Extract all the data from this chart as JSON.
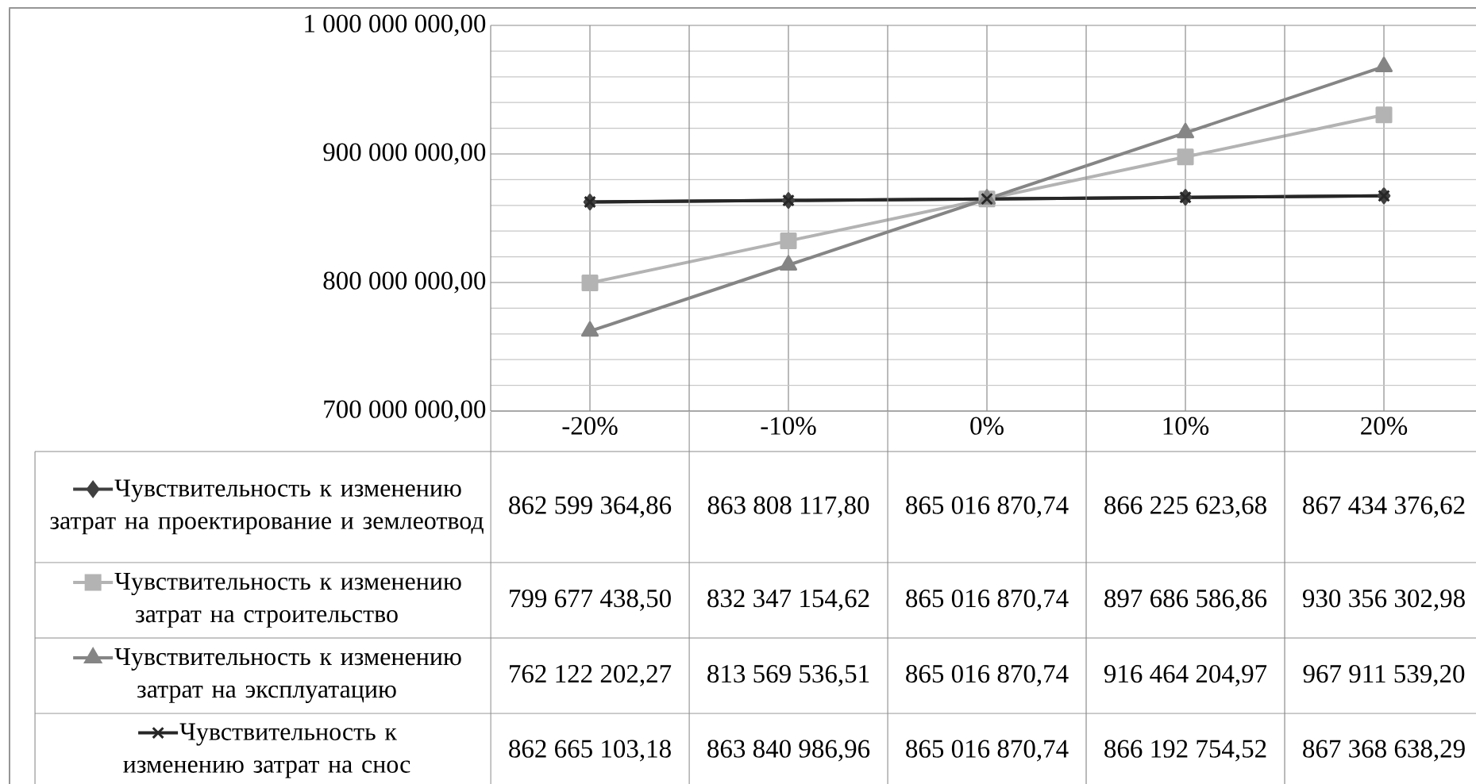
{
  "chart_data": {
    "type": "line",
    "categories": [
      "-20%",
      "-10%",
      "0%",
      "10%",
      "20%"
    ],
    "ylim": [
      700000000,
      1000000000
    ],
    "yticks": [
      {
        "value": 700000000,
        "label": "700 000 000,00"
      },
      {
        "value": 800000000,
        "label": "800 000 000,00"
      },
      {
        "value": 900000000,
        "label": "900 000 000,00"
      },
      {
        "value": 1000000000,
        "label": "1 000 000 000,00"
      }
    ],
    "grid": true,
    "legend": "bottom",
    "series": [
      {
        "name": "Чувствительность к изменению затрат на проектирование и землеотвод",
        "color": "#404040",
        "marker": "diamond",
        "values": [
          862599364.86,
          863808117.8,
          865016870.74,
          866225623.68,
          867434376.62
        ],
        "value_labels": [
          "862 599 364,86",
          "863 808 117,80",
          "865 016 870,74",
          "866 225 623,68",
          "867 434 376,62"
        ]
      },
      {
        "name": "Чувствительность к изменению затрат на строительство",
        "color": "#b3b3b3",
        "marker": "square",
        "values": [
          799677438.5,
          832347154.62,
          865016870.74,
          897686586.86,
          930356302.98
        ],
        "value_labels": [
          "799 677 438,50",
          "832 347 154,62",
          "865 016 870,74",
          "897 686 586,86",
          "930 356 302,98"
        ]
      },
      {
        "name": "Чувствительность к изменению затрат на эксплуатацию",
        "color": "#858585",
        "marker": "triangle",
        "values": [
          762122202.27,
          813569536.51,
          865016870.74,
          916464204.97,
          967911539.2
        ],
        "value_labels": [
          "762 122 202,27",
          "813 569 536,51",
          "865 016 870,74",
          "916 464 204,97",
          "967 911 539,20"
        ]
      },
      {
        "name": "Чувствительность к изменению затрат на снос",
        "color": "#262626",
        "marker": "cross",
        "values": [
          862665103.18,
          863840986.96,
          865016870.74,
          866192754.52,
          867368638.29
        ],
        "value_labels": [
          "862 665 103,18",
          "863 840 986,96",
          "865 016 870,74",
          "866 192 754,52",
          "867 368 638,29"
        ]
      }
    ]
  }
}
